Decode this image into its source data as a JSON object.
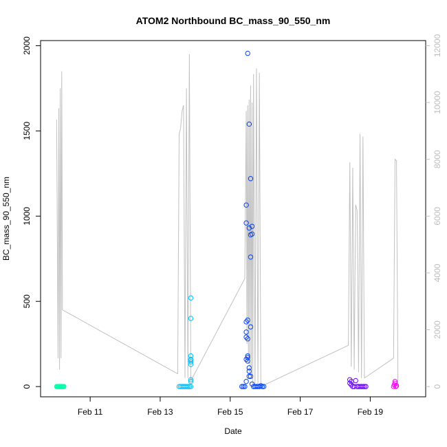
{
  "chart_data": {
    "type": "scatter",
    "title": "ATOM2 Northbound BC_mass_90_550_nm",
    "xlabel": "Date",
    "ylabel": "BC_mass_90_550_nm",
    "xlim": [
      "2017-02-09T14:00",
      "2017-02-20T14:00"
    ],
    "x_ticks": [
      "Feb 11",
      "Feb 13",
      "Feb 15",
      "Feb 17",
      "Feb 19"
    ],
    "x_tick_values": [
      "2017-02-11T00:00",
      "2017-02-13T00:00",
      "2017-02-15T00:00",
      "2017-02-17T00:00",
      "2017-02-19T00:00"
    ],
    "ylim": [
      -60,
      2030
    ],
    "y_ticks": [
      0,
      500,
      1000,
      1500,
      2000
    ],
    "y2lim": [
      -360,
      12180
    ],
    "y2_ticks": [
      0,
      2000,
      4000,
      6000,
      8000,
      10000,
      12000
    ],
    "grid": false,
    "colors": {
      "axes": "#000000",
      "altitude_line": "#c0c0c0",
      "right_axis": "#bdbdbd"
    },
    "series": [
      {
        "color": "#00ffa8",
        "points": [
          [
            "2017-02-10T01:00",
            0
          ],
          [
            "2017-02-10T01:30",
            0
          ],
          [
            "2017-02-10T02:00",
            0
          ],
          [
            "2017-02-10T02:30",
            0
          ],
          [
            "2017-02-10T03:00",
            0
          ],
          [
            "2017-02-10T03:30",
            0
          ],
          [
            "2017-02-10T04:00",
            0
          ],
          [
            "2017-02-10T04:30",
            0
          ],
          [
            "2017-02-10T05:00",
            0
          ],
          [
            "2017-02-10T05:30",
            0
          ],
          [
            "2017-02-10T06:00",
            0
          ]
        ]
      },
      {
        "color": "#00bfff",
        "points": [
          [
            "2017-02-13T13:00",
            0
          ],
          [
            "2017-02-13T14:00",
            0
          ],
          [
            "2017-02-13T15:00",
            0
          ],
          [
            "2017-02-13T16:00",
            0
          ],
          [
            "2017-02-13T17:00",
            0
          ],
          [
            "2017-02-13T18:00",
            0
          ],
          [
            "2017-02-13T19:00",
            0
          ],
          [
            "2017-02-13T20:00",
            0
          ],
          [
            "2017-02-13T21:00",
            0
          ],
          [
            "2017-02-13T21:00",
            30
          ],
          [
            "2017-02-13T21:00",
            40
          ],
          [
            "2017-02-13T21:00",
            130
          ],
          [
            "2017-02-13T21:00",
            145
          ],
          [
            "2017-02-13T21:00",
            155
          ],
          [
            "2017-02-13T21:00",
            160
          ],
          [
            "2017-02-13T21:00",
            180
          ],
          [
            "2017-02-13T21:00",
            400
          ],
          [
            "2017-02-13T21:00",
            520
          ]
        ]
      },
      {
        "color": "#0040ff",
        "points": [
          [
            "2017-02-15T08:00",
            0
          ],
          [
            "2017-02-15T09:00",
            0
          ],
          [
            "2017-02-15T10:00",
            0
          ],
          [
            "2017-02-15T11:00",
            160
          ],
          [
            "2017-02-15T11:00",
            1065
          ],
          [
            "2017-02-15T11:00",
            960
          ],
          [
            "2017-02-15T11:00",
            380
          ],
          [
            "2017-02-15T11:00",
            320
          ],
          [
            "2017-02-15T11:00",
            290
          ],
          [
            "2017-02-15T11:00",
            30
          ],
          [
            "2017-02-15T12:00",
            1955
          ],
          [
            "2017-02-15T12:00",
            390
          ],
          [
            "2017-02-15T12:00",
            280
          ],
          [
            "2017-02-15T12:00",
            180
          ],
          [
            "2017-02-15T12:00",
            170
          ],
          [
            "2017-02-15T12:00",
            150
          ],
          [
            "2017-02-15T13:00",
            1540
          ],
          [
            "2017-02-15T13:00",
            930
          ],
          [
            "2017-02-15T13:00",
            110
          ],
          [
            "2017-02-15T13:00",
            90
          ],
          [
            "2017-02-15T13:00",
            60
          ],
          [
            "2017-02-15T14:00",
            1220
          ],
          [
            "2017-02-15T14:00",
            890
          ],
          [
            "2017-02-15T14:00",
            760
          ],
          [
            "2017-02-15T14:00",
            350
          ],
          [
            "2017-02-15T14:00",
            60
          ],
          [
            "2017-02-15T15:00",
            940
          ],
          [
            "2017-02-15T15:00",
            895
          ],
          [
            "2017-02-15T15:00",
            15
          ],
          [
            "2017-02-15T16:00",
            0
          ],
          [
            "2017-02-15T17:00",
            0
          ],
          [
            "2017-02-15T18:00",
            0
          ],
          [
            "2017-02-15T19:00",
            0
          ],
          [
            "2017-02-15T20:00",
            0
          ],
          [
            "2017-02-15T21:00",
            5
          ],
          [
            "2017-02-15T22:00",
            0
          ],
          [
            "2017-02-15T23:00",
            0
          ]
        ]
      },
      {
        "color": "#6a00ff",
        "points": [
          [
            "2017-02-18T10:00",
            40
          ],
          [
            "2017-02-18T10:00",
            20
          ],
          [
            "2017-02-18T11:00",
            30
          ],
          [
            "2017-02-18T11:00",
            10
          ],
          [
            "2017-02-18T12:00",
            0
          ],
          [
            "2017-02-18T13:00",
            0
          ],
          [
            "2017-02-18T14:00",
            35
          ],
          [
            "2017-02-18T15:00",
            0
          ],
          [
            "2017-02-18T16:00",
            0
          ],
          [
            "2017-02-18T17:00",
            0
          ],
          [
            "2017-02-18T18:00",
            0
          ],
          [
            "2017-02-18T19:00",
            0
          ],
          [
            "2017-02-18T20:00",
            0
          ],
          [
            "2017-02-18T21:00",
            0
          ]
        ]
      },
      {
        "color": "#ff00ff",
        "points": [
          [
            "2017-02-19T16:00",
            0
          ],
          [
            "2017-02-19T16:30",
            10
          ],
          [
            "2017-02-19T17:00",
            30
          ],
          [
            "2017-02-19T17:00",
            20
          ],
          [
            "2017-02-19T17:30",
            0
          ],
          [
            "2017-02-19T18:00",
            5
          ]
        ]
      }
    ],
    "altitude_line": {
      "points": [
        [
          "2017-02-10T01:00",
          9400
        ],
        [
          "2017-02-10T02:00",
          1000
        ],
        [
          "2017-02-10T02:30",
          9800
        ],
        [
          "2017-02-10T03:00",
          600
        ],
        [
          "2017-02-10T03:30",
          10500
        ],
        [
          "2017-02-10T04:00",
          1000
        ],
        [
          "2017-02-10T04:30",
          11100
        ],
        [
          "2017-02-10T05:00",
          2700
        ],
        [
          "2017-02-13T12:00",
          450
        ],
        [
          "2017-02-13T13:00",
          8900
        ],
        [
          "2017-02-13T14:00",
          9100
        ],
        [
          "2017-02-13T15:00",
          9700
        ],
        [
          "2017-02-13T16:00",
          9900
        ],
        [
          "2017-02-13T17:00",
          300
        ],
        [
          "2017-02-13T18:00",
          10500
        ],
        [
          "2017-02-13T19:00",
          300
        ],
        [
          "2017-02-13T20:00",
          11700
        ],
        [
          "2017-02-13T21:00",
          200
        ],
        [
          "2017-02-15T10:00",
          3800
        ],
        [
          "2017-02-15T11:00",
          9700
        ],
        [
          "2017-02-15T11:30",
          1500
        ],
        [
          "2017-02-15T12:00",
          9900
        ],
        [
          "2017-02-15T12:30",
          800
        ],
        [
          "2017-02-15T13:00",
          10100
        ],
        [
          "2017-02-15T13:30",
          400
        ],
        [
          "2017-02-15T14:00",
          10600
        ],
        [
          "2017-02-15T14:30",
          300
        ],
        [
          "2017-02-15T15:00",
          10000
        ],
        [
          "2017-02-15T15:30",
          100
        ],
        [
          "2017-02-15T16:00",
          11000
        ],
        [
          "2017-02-15T17:00",
          100
        ],
        [
          "2017-02-15T18:00",
          11200
        ],
        [
          "2017-02-15T19:00",
          100
        ],
        [
          "2017-02-15T20:00",
          11050
        ],
        [
          "2017-02-15T21:00",
          0
        ],
        [
          "2017-02-18T09:00",
          1450
        ],
        [
          "2017-02-18T10:00",
          7900
        ],
        [
          "2017-02-18T11:00",
          700
        ],
        [
          "2017-02-18T12:00",
          7700
        ],
        [
          "2017-02-18T13:00",
          600
        ],
        [
          "2017-02-18T14:00",
          6400
        ],
        [
          "2017-02-18T15:00",
          6200
        ],
        [
          "2017-02-18T16:00",
          500
        ],
        [
          "2017-02-18T17:00",
          8900
        ],
        [
          "2017-02-18T18:00",
          300
        ],
        [
          "2017-02-18T19:00",
          8800
        ],
        [
          "2017-02-18T20:00",
          300
        ],
        [
          "2017-02-19T16:00",
          1000
        ],
        [
          "2017-02-19T17:00",
          8000
        ],
        [
          "2017-02-19T18:00",
          7950
        ],
        [
          "2017-02-19T19:00",
          0
        ]
      ]
    }
  }
}
